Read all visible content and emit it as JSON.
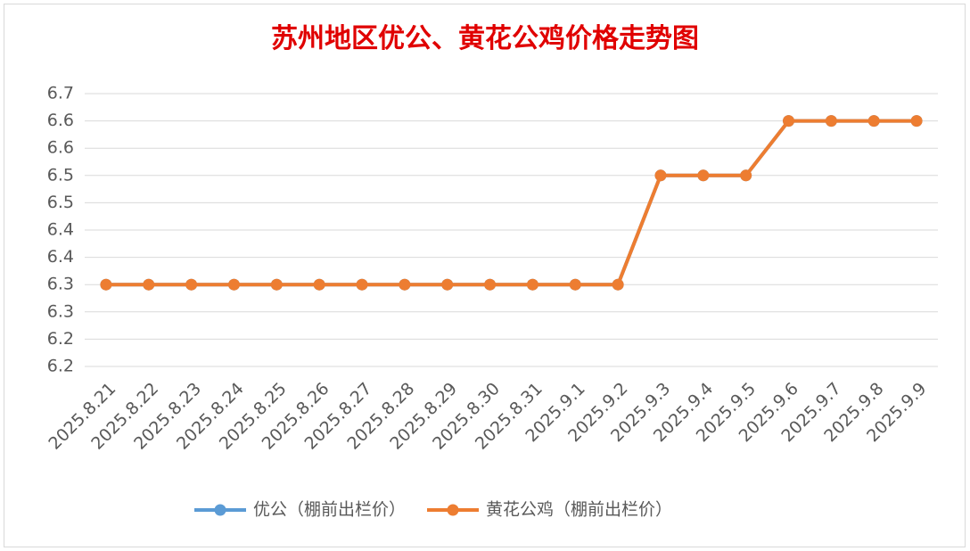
{
  "chart_data": {
    "type": "line",
    "title": "苏州地区优公、黄花公鸡价格走势图",
    "categories": [
      "2025.8.21",
      "2025.8.22",
      "2025.8.23",
      "2025.8.24",
      "2025.8.25",
      "2025.8.26",
      "2025.8.27",
      "2025.8.28",
      "2025.8.29",
      "2025.8.30",
      "2025.8.31",
      "2025.9.1",
      "2025.9.2",
      "2025.9.3",
      "2025.9.4",
      "2025.9.5",
      "2025.9.6",
      "2025.9.7",
      "2025.9.8",
      "2025.9.9"
    ],
    "series": [
      {
        "name": "优公（棚前出栏价）",
        "color": "#5b9bd5",
        "values": [
          6.35,
          6.35,
          6.35,
          6.35,
          6.35,
          6.35,
          6.35,
          6.35,
          6.35,
          6.35,
          6.35,
          6.35,
          6.35,
          6.55,
          6.55,
          6.55,
          6.65,
          6.65,
          6.65,
          6.65
        ]
      },
      {
        "name": "黄花公鸡（棚前出栏价）",
        "color": "#ed7d31",
        "values": [
          6.35,
          6.35,
          6.35,
          6.35,
          6.35,
          6.35,
          6.35,
          6.35,
          6.35,
          6.35,
          6.35,
          6.35,
          6.35,
          6.55,
          6.55,
          6.55,
          6.65,
          6.65,
          6.65,
          6.65
        ]
      }
    ],
    "ylim": [
      6.2,
      6.7
    ],
    "yticks": [
      {
        "value": 6.2,
        "label": "6.2"
      },
      {
        "value": 6.25,
        "label": "6.2"
      },
      {
        "value": 6.3,
        "label": "6.3"
      },
      {
        "value": 6.35,
        "label": "6.3"
      },
      {
        "value": 6.4,
        "label": "6.4"
      },
      {
        "value": 6.45,
        "label": "6.4"
      },
      {
        "value": 6.5,
        "label": "6.5"
      },
      {
        "value": 6.55,
        "label": "6.5"
      },
      {
        "value": 6.6,
        "label": "6.6"
      },
      {
        "value": 6.65,
        "label": "6.6"
      },
      {
        "value": 6.7,
        "label": "6.7"
      }
    ],
    "grid": true,
    "legend": "bottom"
  }
}
